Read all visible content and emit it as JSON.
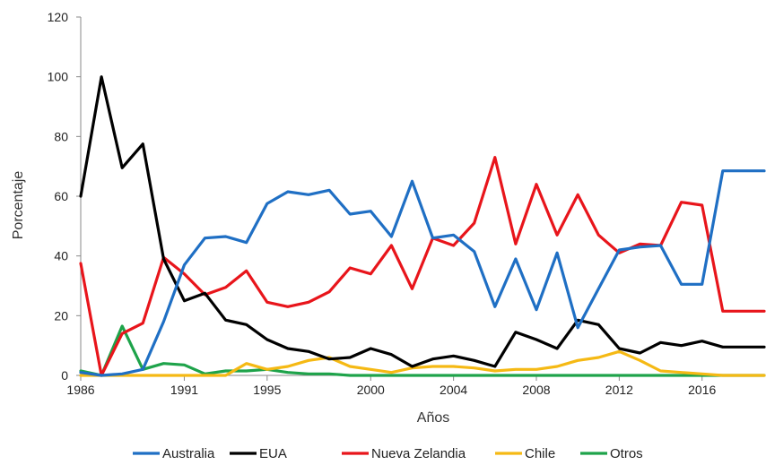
{
  "chart_data": {
    "type": "line",
    "title": "",
    "xlabel": "Años",
    "ylabel": "Porcentaje",
    "xlim": [
      1986,
      2019
    ],
    "ylim": [
      0,
      120
    ],
    "grid": false,
    "legend_position": "bottom",
    "x_ticks": [
      "1986",
      "1991",
      "1995",
      "2000",
      "2004",
      "2008",
      "2012",
      "2016"
    ],
    "y_ticks": [
      "0",
      "20",
      "40",
      "60",
      "80",
      "100",
      "120"
    ],
    "x": [
      1986,
      1987,
      1988,
      1989,
      1990,
      1991,
      1992,
      1993,
      1994,
      1995,
      1996,
      1997,
      1998,
      1999,
      2000,
      2001,
      2002,
      2003,
      2004,
      2005,
      2006,
      2007,
      2008,
      2009,
      2010,
      2011,
      2012,
      2013,
      2014,
      2015,
      2016,
      2017,
      2018,
      2019
    ],
    "series": [
      {
        "name": "Australia",
        "color": "#1f6fc4",
        "values": [
          1,
          0,
          0.5,
          2,
          18,
          37,
          46,
          46.5,
          44.5,
          57.5,
          61.5,
          60.5,
          62,
          54,
          55,
          46.5,
          65,
          46,
          47,
          41.5,
          23,
          39,
          22,
          41,
          16,
          29,
          42,
          43,
          43.5,
          30.5,
          30.5,
          68.5,
          68.5,
          68.5
        ]
      },
      {
        "name": "EUA",
        "color": "#000000",
        "values": [
          60,
          100,
          69.5,
          77.5,
          39,
          25,
          27.5,
          18.5,
          17,
          12,
          9,
          8,
          5.5,
          6,
          9,
          7,
          3,
          5.5,
          6.5,
          5,
          3,
          14.5,
          12,
          9,
          18.5,
          17,
          9,
          7.5,
          11,
          10,
          11.5,
          9.5,
          9.5,
          9.5
        ]
      },
      {
        "name": "Nueva Zelandia",
        "color": "#e8151b",
        "values": [
          37.5,
          0,
          14,
          17.5,
          39.5,
          34,
          27,
          29.5,
          35,
          24.5,
          23,
          24.5,
          28,
          36,
          34,
          43.5,
          29,
          46,
          43.5,
          51,
          73,
          44,
          64,
          47,
          60.5,
          47,
          41,
          44,
          43.5,
          58,
          57,
          21.5,
          21.5,
          21.5
        ]
      },
      {
        "name": "Chile",
        "color": "#f5b914",
        "values": [
          0,
          0,
          0,
          0,
          0,
          0,
          0,
          0,
          4,
          2,
          3,
          5,
          6,
          3,
          2,
          1,
          2.5,
          3,
          3,
          2.5,
          1.5,
          2,
          2,
          3,
          5,
          6,
          8,
          5,
          1.5,
          1,
          0.5,
          0,
          0,
          0
        ]
      },
      {
        "name": "Otros",
        "color": "#1ea34a",
        "values": [
          1.5,
          0,
          16.5,
          2,
          4,
          3.5,
          0.5,
          1.5,
          1.5,
          2,
          1,
          0.5,
          0.5,
          0,
          0,
          0,
          0,
          0,
          0,
          0,
          0,
          0,
          0,
          0,
          0,
          0,
          0,
          0,
          0,
          0,
          0,
          0,
          0,
          0
        ]
      }
    ]
  }
}
